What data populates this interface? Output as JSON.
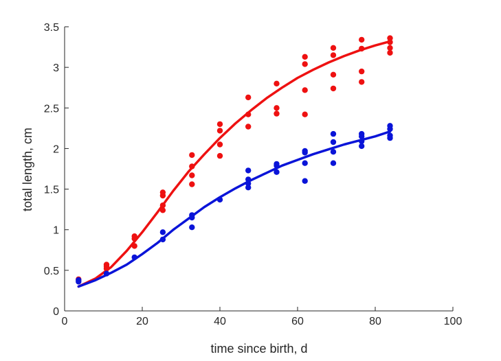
{
  "chart_data": {
    "type": "scatter",
    "title": "",
    "xlabel": "time since birth, d",
    "ylabel": "total length, cm",
    "xlim": [
      0,
      100
    ],
    "ylim": [
      0,
      3.5
    ],
    "xticks": [
      "0",
      "20",
      "40",
      "60",
      "80",
      "100"
    ],
    "yticks": [
      "0",
      "0.5",
      "1",
      "1.5",
      "2",
      "2.5",
      "3",
      "3.5"
    ],
    "grid": false,
    "legend": "none",
    "series": [
      {
        "color": "#ee1111",
        "points": [
          [
            3.6,
            0.39
          ],
          [
            10.8,
            0.57
          ],
          [
            10.8,
            0.55
          ],
          [
            10.8,
            0.52
          ],
          [
            18.0,
            0.92
          ],
          [
            18.0,
            0.89
          ],
          [
            18.0,
            0.8
          ],
          [
            25.3,
            1.46
          ],
          [
            25.3,
            1.42
          ],
          [
            25.3,
            1.3
          ],
          [
            25.3,
            1.24
          ],
          [
            32.8,
            1.92
          ],
          [
            32.8,
            1.78
          ],
          [
            32.8,
            1.67
          ],
          [
            32.8,
            1.56
          ],
          [
            40.0,
            2.3
          ],
          [
            40.0,
            2.22
          ],
          [
            40.0,
            2.05
          ],
          [
            40.0,
            1.91
          ],
          [
            47.3,
            2.63
          ],
          [
            47.3,
            2.42
          ],
          [
            47.3,
            2.27
          ],
          [
            54.6,
            2.8
          ],
          [
            54.6,
            2.5
          ],
          [
            54.6,
            2.43
          ],
          [
            61.9,
            3.13
          ],
          [
            61.9,
            3.04
          ],
          [
            61.9,
            2.72
          ],
          [
            61.9,
            2.42
          ],
          [
            69.2,
            3.24
          ],
          [
            69.2,
            3.15
          ],
          [
            69.2,
            2.91
          ],
          [
            69.2,
            2.74
          ],
          [
            76.5,
            3.34
          ],
          [
            76.5,
            3.23
          ],
          [
            76.5,
            2.95
          ],
          [
            76.5,
            2.82
          ],
          [
            83.8,
            3.36
          ],
          [
            83.8,
            3.31
          ],
          [
            83.8,
            3.24
          ],
          [
            83.8,
            3.18
          ]
        ],
        "fit": [
          [
            3.6,
            0.3
          ],
          [
            8,
            0.4
          ],
          [
            12,
            0.54
          ],
          [
            16,
            0.74
          ],
          [
            20,
            0.97
          ],
          [
            24,
            1.22
          ],
          [
            28,
            1.48
          ],
          [
            32,
            1.72
          ],
          [
            36,
            1.93
          ],
          [
            40,
            2.13
          ],
          [
            44,
            2.31
          ],
          [
            48,
            2.47
          ],
          [
            52,
            2.62
          ],
          [
            56,
            2.75
          ],
          [
            60,
            2.87
          ],
          [
            64,
            2.97
          ],
          [
            68,
            3.06
          ],
          [
            72,
            3.14
          ],
          [
            76,
            3.21
          ],
          [
            80,
            3.27
          ],
          [
            83.8,
            3.32
          ]
        ]
      },
      {
        "color": "#0a14d8",
        "points": [
          [
            3.6,
            0.38
          ],
          [
            3.6,
            0.36
          ],
          [
            10.8,
            0.46
          ],
          [
            18.0,
            0.66
          ],
          [
            25.3,
            0.97
          ],
          [
            25.3,
            0.88
          ],
          [
            32.8,
            1.18
          ],
          [
            32.8,
            1.15
          ],
          [
            32.8,
            1.03
          ],
          [
            40.0,
            1.37
          ],
          [
            47.3,
            1.73
          ],
          [
            47.3,
            1.62
          ],
          [
            47.3,
            1.57
          ],
          [
            47.3,
            1.52
          ],
          [
            54.6,
            1.81
          ],
          [
            54.6,
            1.79
          ],
          [
            54.6,
            1.71
          ],
          [
            61.9,
            1.97
          ],
          [
            61.9,
            1.95
          ],
          [
            61.9,
            1.82
          ],
          [
            61.9,
            1.6
          ],
          [
            69.2,
            2.18
          ],
          [
            69.2,
            2.08
          ],
          [
            69.2,
            1.96
          ],
          [
            69.2,
            1.82
          ],
          [
            76.5,
            2.18
          ],
          [
            76.5,
            2.15
          ],
          [
            76.5,
            2.09
          ],
          [
            76.5,
            2.03
          ],
          [
            83.8,
            2.28
          ],
          [
            83.8,
            2.24
          ],
          [
            83.8,
            2.16
          ],
          [
            83.8,
            2.13
          ]
        ],
        "fit": [
          [
            3.6,
            0.3
          ],
          [
            8,
            0.38
          ],
          [
            12,
            0.47
          ],
          [
            16,
            0.57
          ],
          [
            20,
            0.7
          ],
          [
            24,
            0.84
          ],
          [
            28,
            1.0
          ],
          [
            32,
            1.14
          ],
          [
            36,
            1.28
          ],
          [
            40,
            1.4
          ],
          [
            44,
            1.51
          ],
          [
            48,
            1.61
          ],
          [
            52,
            1.7
          ],
          [
            56,
            1.79
          ],
          [
            60,
            1.86
          ],
          [
            64,
            1.93
          ],
          [
            68,
            1.99
          ],
          [
            72,
            2.05
          ],
          [
            76,
            2.1
          ],
          [
            80,
            2.15
          ],
          [
            83.8,
            2.21
          ]
        ]
      }
    ]
  }
}
